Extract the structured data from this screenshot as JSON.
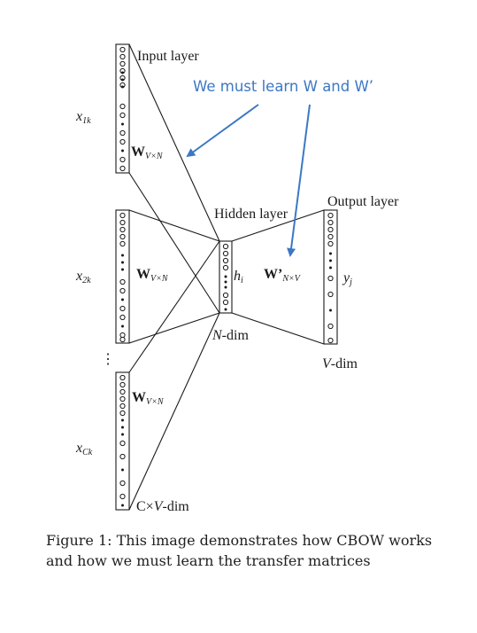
{
  "diagram": {
    "input_layer_label": "Input layer",
    "hidden_layer_label": "Hidden layer",
    "output_layer_label": "Output layer",
    "annotation": "We must learn W and W’",
    "annotation_color": "#3b78c4",
    "line_color": "#1a1a1a",
    "inputs": [
      {
        "var": "x",
        "sub": "1k",
        "weight": "W",
        "weight_sub": "V×N"
      },
      {
        "var": "x",
        "sub": "2k",
        "weight": "W",
        "weight_sub": "V×N"
      },
      {
        "var": "x",
        "sub": "Ck",
        "weight": "W",
        "weight_sub": "V×N"
      }
    ],
    "hidden_var": "h",
    "hidden_sub": "i",
    "output_weight": "W’",
    "output_weight_sub": "N×V",
    "output_var": "y",
    "output_sub": "j",
    "n_dim": "-dim",
    "n_dim_var": "N",
    "v_dim": "-dim",
    "v_dim_var": "V",
    "cv_dim_pre": "C×",
    "cv_dim_var": "V",
    "cv_dim_post": "-dim",
    "ellipsis": "⋮"
  },
  "caption": "Figure 1: This image demonstrates how CBOW works and how we must learn the transfer matrices"
}
